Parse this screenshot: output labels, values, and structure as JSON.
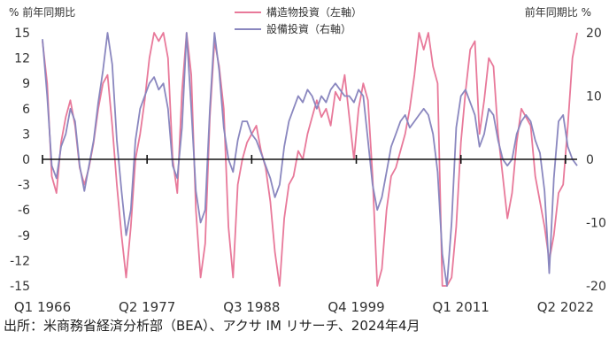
{
  "chart_data": {
    "type": "line",
    "title": "",
    "left_axis": {
      "unit": "%",
      "label": "前年同期比",
      "ylim": [
        -15,
        15
      ],
      "ticks": [
        15,
        12,
        9,
        6,
        3,
        0,
        -3,
        -6,
        -9,
        -12,
        -15
      ]
    },
    "right_axis": {
      "unit": "%",
      "label": "前年同期比",
      "ylim": [
        -20,
        20
      ],
      "ticks": [
        20,
        10,
        0,
        -10,
        -20
      ]
    },
    "x_range": [
      1966.0,
      2023.5
    ],
    "x_tick_labels": [
      {
        "x": 1966.0,
        "label": "Q1 1966"
      },
      {
        "x": 1977.25,
        "label": "Q2 1977"
      },
      {
        "x": 1988.5,
        "label": "Q3 1988"
      },
      {
        "x": 1999.75,
        "label": "Q4 1999"
      },
      {
        "x": 2011.0,
        "label": "Q1 2011"
      },
      {
        "x": 2022.25,
        "label": "Q2 2022"
      }
    ],
    "series": [
      {
        "name": "構造物投資（左軸）",
        "axis": "left",
        "color": "#e8799a",
        "points": [
          [
            1966.0,
            14
          ],
          [
            1966.5,
            9
          ],
          [
            1967.0,
            -2
          ],
          [
            1967.5,
            -4
          ],
          [
            1968.0,
            2
          ],
          [
            1968.5,
            5
          ],
          [
            1969.0,
            7
          ],
          [
            1969.5,
            4
          ],
          [
            1970.0,
            -1
          ],
          [
            1970.5,
            -3
          ],
          [
            1971.0,
            -1
          ],
          [
            1971.5,
            2
          ],
          [
            1972.0,
            6
          ],
          [
            1972.5,
            9
          ],
          [
            1973.0,
            10
          ],
          [
            1973.5,
            4
          ],
          [
            1974.0,
            -3
          ],
          [
            1974.5,
            -9
          ],
          [
            1975.0,
            -14
          ],
          [
            1975.5,
            -8
          ],
          [
            1976.0,
            0
          ],
          [
            1976.5,
            3
          ],
          [
            1977.0,
            7
          ],
          [
            1977.5,
            12
          ],
          [
            1978.0,
            15
          ],
          [
            1978.5,
            14
          ],
          [
            1979.0,
            15
          ],
          [
            1979.5,
            12
          ],
          [
            1980.0,
            0
          ],
          [
            1980.5,
            -4
          ],
          [
            1981.0,
            8
          ],
          [
            1981.5,
            15
          ],
          [
            1982.0,
            10
          ],
          [
            1982.5,
            -6
          ],
          [
            1983.0,
            -14
          ],
          [
            1983.5,
            -10
          ],
          [
            1984.0,
            5
          ],
          [
            1984.5,
            14
          ],
          [
            1985.0,
            11
          ],
          [
            1985.5,
            6
          ],
          [
            1986.0,
            -8
          ],
          [
            1986.5,
            -14
          ],
          [
            1987.0,
            -3
          ],
          [
            1987.5,
            0
          ],
          [
            1988.0,
            2
          ],
          [
            1988.5,
            3
          ],
          [
            1989.0,
            4
          ],
          [
            1989.5,
            1
          ],
          [
            1990.0,
            -1
          ],
          [
            1990.5,
            -5
          ],
          [
            1991.0,
            -11
          ],
          [
            1991.5,
            -15
          ],
          [
            1992.0,
            -7
          ],
          [
            1992.5,
            -3
          ],
          [
            1993.0,
            -2
          ],
          [
            1993.5,
            1
          ],
          [
            1994.0,
            0
          ],
          [
            1994.5,
            3
          ],
          [
            1995.0,
            5
          ],
          [
            1995.5,
            7
          ],
          [
            1996.0,
            5
          ],
          [
            1996.5,
            6
          ],
          [
            1997.0,
            4
          ],
          [
            1997.5,
            8
          ],
          [
            1998.0,
            7
          ],
          [
            1998.5,
            10
          ],
          [
            1999.0,
            5
          ],
          [
            1999.5,
            0
          ],
          [
            2000.0,
            6
          ],
          [
            2000.5,
            9
          ],
          [
            2001.0,
            7
          ],
          [
            2001.5,
            -2
          ],
          [
            2002.0,
            -15
          ],
          [
            2002.5,
            -13
          ],
          [
            2003.0,
            -6
          ],
          [
            2003.5,
            -2
          ],
          [
            2004.0,
            -1
          ],
          [
            2004.5,
            1
          ],
          [
            2005.0,
            3
          ],
          [
            2005.5,
            6
          ],
          [
            2006.0,
            10
          ],
          [
            2006.5,
            15
          ],
          [
            2007.0,
            13
          ],
          [
            2007.5,
            15
          ],
          [
            2008.0,
            11
          ],
          [
            2008.5,
            9
          ],
          [
            2009.0,
            -15
          ],
          [
            2009.5,
            -15
          ],
          [
            2010.0,
            -14
          ],
          [
            2010.5,
            -8
          ],
          [
            2011.0,
            2
          ],
          [
            2011.5,
            8
          ],
          [
            2012.0,
            13
          ],
          [
            2012.5,
            14
          ],
          [
            2013.0,
            3
          ],
          [
            2013.5,
            7
          ],
          [
            2014.0,
            12
          ],
          [
            2014.5,
            11
          ],
          [
            2015.0,
            3
          ],
          [
            2015.5,
            -2
          ],
          [
            2016.0,
            -7
          ],
          [
            2016.5,
            -4
          ],
          [
            2017.0,
            2
          ],
          [
            2017.5,
            6
          ],
          [
            2018.0,
            5
          ],
          [
            2018.5,
            4
          ],
          [
            2019.0,
            -2
          ],
          [
            2019.5,
            -5
          ],
          [
            2020.0,
            -8
          ],
          [
            2020.5,
            -12
          ],
          [
            2021.0,
            -9
          ],
          [
            2021.5,
            -4
          ],
          [
            2022.0,
            -3
          ],
          [
            2022.5,
            4
          ],
          [
            2023.0,
            12
          ],
          [
            2023.5,
            15
          ]
        ]
      },
      {
        "name": "設備投資（右軸）",
        "axis": "right",
        "color": "#8a87bf",
        "points": [
          [
            1966.0,
            19
          ],
          [
            1966.5,
            10
          ],
          [
            1967.0,
            -1
          ],
          [
            1967.5,
            -3
          ],
          [
            1968.0,
            2
          ],
          [
            1968.5,
            4
          ],
          [
            1969.0,
            8
          ],
          [
            1969.5,
            6
          ],
          [
            1970.0,
            -1
          ],
          [
            1970.5,
            -5
          ],
          [
            1971.0,
            -1
          ],
          [
            1971.5,
            3
          ],
          [
            1972.0,
            9
          ],
          [
            1972.5,
            14
          ],
          [
            1973.0,
            20
          ],
          [
            1973.5,
            15
          ],
          [
            1974.0,
            3
          ],
          [
            1974.5,
            -5
          ],
          [
            1975.0,
            -12
          ],
          [
            1975.5,
            -8
          ],
          [
            1976.0,
            3
          ],
          [
            1976.5,
            8
          ],
          [
            1977.0,
            10
          ],
          [
            1977.5,
            12
          ],
          [
            1978.0,
            13
          ],
          [
            1978.5,
            11
          ],
          [
            1979.0,
            12
          ],
          [
            1979.5,
            8
          ],
          [
            1980.0,
            -1
          ],
          [
            1980.5,
            -3
          ],
          [
            1981.0,
            5
          ],
          [
            1981.5,
            20
          ],
          [
            1982.0,
            8
          ],
          [
            1982.5,
            -5
          ],
          [
            1983.0,
            -10
          ],
          [
            1983.5,
            -8
          ],
          [
            1984.0,
            8
          ],
          [
            1984.5,
            20
          ],
          [
            1985.0,
            14
          ],
          [
            1985.5,
            5
          ],
          [
            1986.0,
            0
          ],
          [
            1986.5,
            -2
          ],
          [
            1987.0,
            3
          ],
          [
            1987.5,
            6
          ],
          [
            1988.0,
            6
          ],
          [
            1988.5,
            4
          ],
          [
            1989.0,
            3
          ],
          [
            1989.5,
            1
          ],
          [
            1990.0,
            -1
          ],
          [
            1990.5,
            -3
          ],
          [
            1991.0,
            -6
          ],
          [
            1991.5,
            -4
          ],
          [
            1992.0,
            2
          ],
          [
            1992.5,
            6
          ],
          [
            1993.0,
            8
          ],
          [
            1993.5,
            10
          ],
          [
            1994.0,
            9
          ],
          [
            1994.5,
            11
          ],
          [
            1995.0,
            10
          ],
          [
            1995.5,
            8
          ],
          [
            1996.0,
            10
          ],
          [
            1996.5,
            9
          ],
          [
            1997.0,
            11
          ],
          [
            1997.5,
            12
          ],
          [
            1998.0,
            11
          ],
          [
            1998.5,
            10
          ],
          [
            1999.0,
            10
          ],
          [
            1999.5,
            9
          ],
          [
            2000.0,
            11
          ],
          [
            2000.5,
            10
          ],
          [
            2001.0,
            3
          ],
          [
            2001.5,
            -4
          ],
          [
            2002.0,
            -8
          ],
          [
            2002.5,
            -6
          ],
          [
            2003.0,
            -2
          ],
          [
            2003.5,
            2
          ],
          [
            2004.0,
            4
          ],
          [
            2004.5,
            6
          ],
          [
            2005.0,
            7
          ],
          [
            2005.5,
            5
          ],
          [
            2006.0,
            6
          ],
          [
            2006.5,
            7
          ],
          [
            2007.0,
            8
          ],
          [
            2007.5,
            7
          ],
          [
            2008.0,
            4
          ],
          [
            2008.5,
            -2
          ],
          [
            2009.0,
            -15
          ],
          [
            2009.5,
            -20
          ],
          [
            2010.0,
            -10
          ],
          [
            2010.5,
            5
          ],
          [
            2011.0,
            10
          ],
          [
            2011.5,
            11
          ],
          [
            2012.0,
            9
          ],
          [
            2012.5,
            7
          ],
          [
            2013.0,
            2
          ],
          [
            2013.5,
            4
          ],
          [
            2014.0,
            8
          ],
          [
            2014.5,
            7
          ],
          [
            2015.0,
            3
          ],
          [
            2015.5,
            0
          ],
          [
            2016.0,
            -1
          ],
          [
            2016.5,
            0
          ],
          [
            2017.0,
            4
          ],
          [
            2017.5,
            6
          ],
          [
            2018.0,
            7
          ],
          [
            2018.5,
            6
          ],
          [
            2019.0,
            3
          ],
          [
            2019.5,
            1
          ],
          [
            2020.0,
            -5
          ],
          [
            2020.5,
            -18
          ],
          [
            2021.0,
            -3
          ],
          [
            2021.5,
            6
          ],
          [
            2022.0,
            7
          ],
          [
            2022.5,
            2
          ],
          [
            2023.0,
            0
          ],
          [
            2023.5,
            -1
          ]
        ]
      }
    ]
  },
  "source": "出所：米商務省経済分析部（BEA）、アクサ IM リサーチ、2024年4月"
}
